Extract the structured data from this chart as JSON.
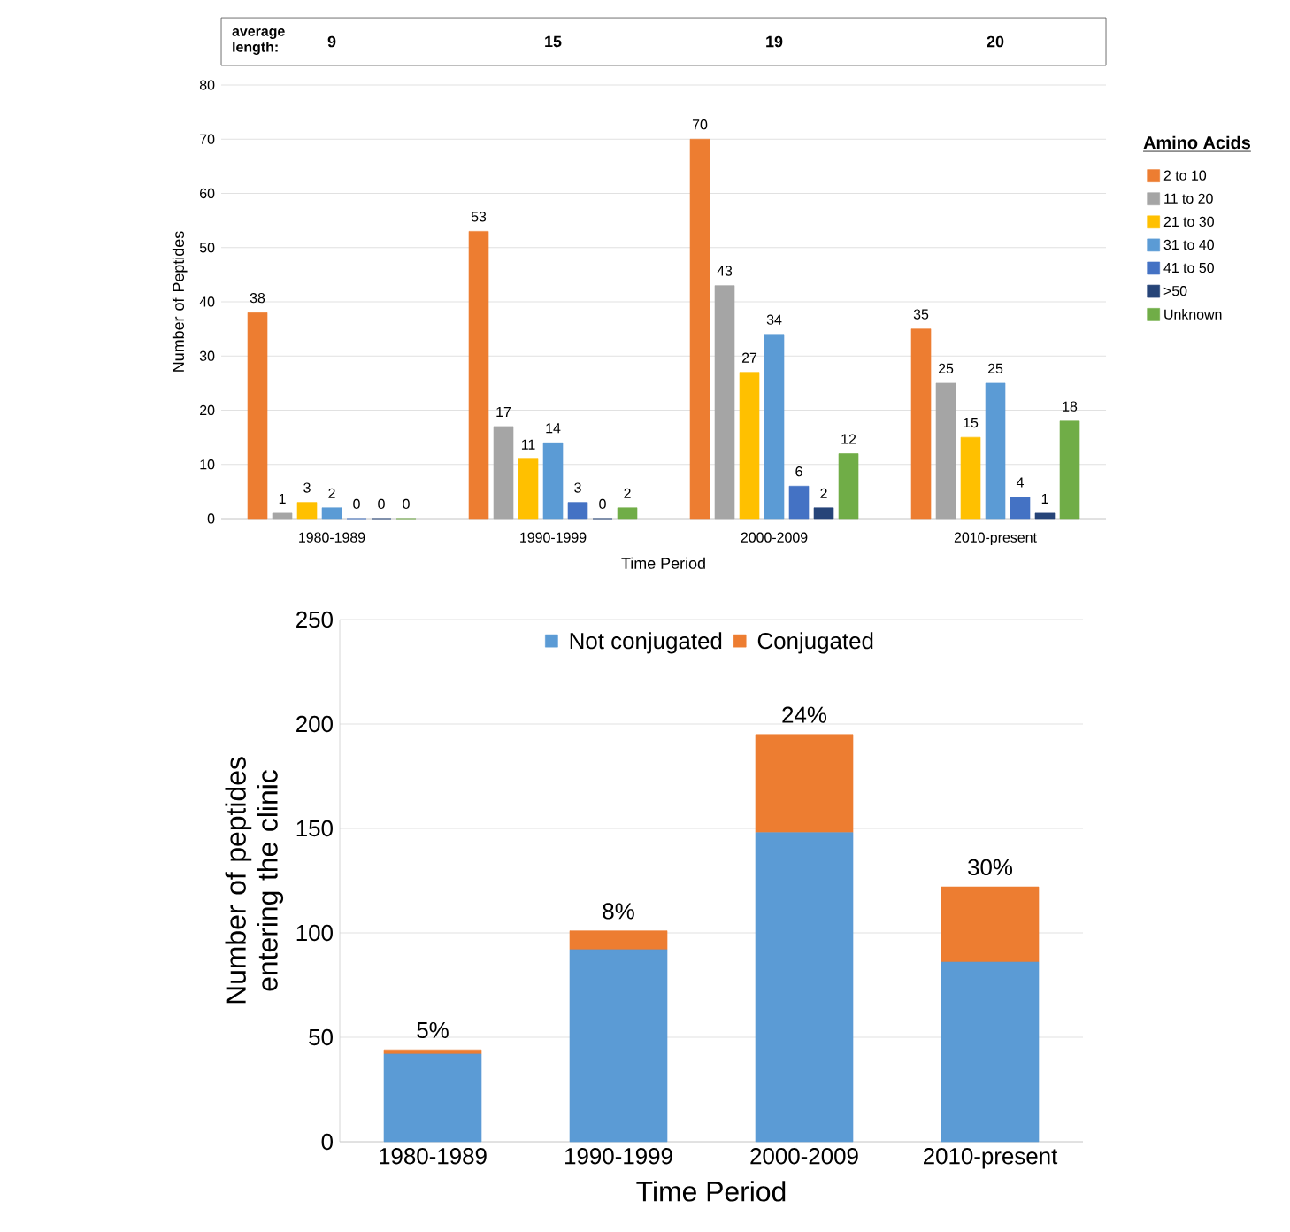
{
  "chart_data": [
    {
      "type": "bar",
      "categories": [
        "1980-1989",
        "1990-1999",
        "2000-2009",
        "2010-present"
      ],
      "xlabel": "Time Period",
      "ylabel": "Number of Peptides",
      "legend_title": "Amino Acids",
      "legend": "right",
      "grid": "y",
      "data_labels": true,
      "ylim": [
        0,
        80
      ],
      "yticks": [
        0,
        10,
        20,
        30,
        40,
        50,
        60,
        70,
        80
      ],
      "annotations": [
        "average length:",
        "9",
        "15",
        "19",
        "20"
      ],
      "series": [
        {
          "name": "2 to 10",
          "color": "#ed7d31",
          "values": [
            38,
            53,
            70,
            35
          ]
        },
        {
          "name": "11 to 20",
          "color": "#a5a5a5",
          "values": [
            1,
            17,
            43,
            25
          ]
        },
        {
          "name": "21 to 30",
          "color": "#ffc000",
          "values": [
            3,
            11,
            27,
            15
          ]
        },
        {
          "name": "31 to 40",
          "color": "#5b9bd5",
          "values": [
            2,
            14,
            34,
            25
          ]
        },
        {
          "name": "41 to 50",
          "color": "#4472c4",
          "values": [
            0,
            3,
            6,
            4
          ]
        },
        {
          "name": ">50",
          "color": "#264478",
          "values": [
            0,
            0,
            2,
            1
          ]
        },
        {
          "name": "Unknown",
          "color": "#70ad47",
          "values": [
            0,
            2,
            12,
            18
          ]
        }
      ]
    },
    {
      "type": "bar",
      "stacked": true,
      "categories": [
        "1980-1989",
        "1990-1999",
        "2000-2009",
        "2010-present"
      ],
      "xlabel": "Time Period",
      "ylabel": "Number of peptides entering the clinic",
      "legend": "top",
      "grid": "y",
      "ylim": [
        0,
        250
      ],
      "yticks": [
        0,
        50,
        100,
        150,
        200,
        250
      ],
      "annotations": [
        {
          "text": "5%",
          "x": "1980-1989",
          "y": 44
        },
        {
          "text": "8%",
          "x": "1990-1999",
          "y": 101
        },
        {
          "text": "24%",
          "x": "2000-2009",
          "y": 195
        },
        {
          "text": "30%",
          "x": "2010-present",
          "y": 122
        }
      ],
      "series": [
        {
          "name": "Not conjugated",
          "color": "#5b9bd5",
          "values": [
            42,
            92,
            148,
            86
          ]
        },
        {
          "name": "Conjugated",
          "color": "#ed7d31",
          "values": [
            2,
            9,
            47,
            36
          ]
        }
      ]
    }
  ]
}
